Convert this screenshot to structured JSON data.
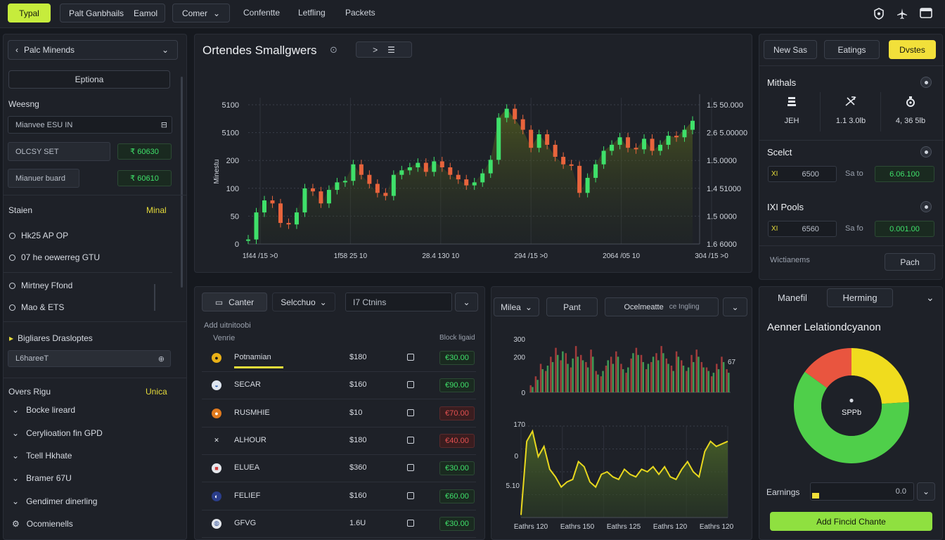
{
  "topbar": {
    "brand_button": "Typal",
    "tabs_group": [
      "Palt Ganbhails",
      "Eamol"
    ],
    "center_dropdown": "Comer",
    "nav_links": [
      "Confentte",
      "Letfling",
      "Packets"
    ],
    "icons": [
      "shield-icon",
      "plane-icon",
      "window-icon"
    ]
  },
  "sidebar": {
    "select_label": "Palc Minends",
    "options_button": "Eptiona",
    "weeshg_label": "Weesng",
    "input_value": "Mianvee ESU IN",
    "row1_label": "OLCSY SET",
    "row1_value": "₹ 60630",
    "row2_label": "Mianuer buard",
    "row2_value": "₹ 60610",
    "status_title": "Staien",
    "status_value": "Minal",
    "radios": [
      "Hk25 AP OP",
      "07 he oewerreg GTU",
      "Mirtney Ffond",
      "Mao & ETS"
    ],
    "bigl_title": "Bigliares Drasloptes",
    "bigl_input": "L6hareeT",
    "overs_title": "Overs Rigu",
    "overs_value": "Unica",
    "tree_items": [
      "Bocke lireard",
      "Cerylioation fin GPD",
      "Tcell Hkhate",
      "Bramer 67U",
      "Gendimer dinerling",
      "Ocomienells"
    ]
  },
  "main_chart": {
    "title": "Ortendes Smallgwers",
    "page_control": ">",
    "y_left": [
      "5100",
      "5100",
      "200",
      "100",
      "50",
      "0"
    ],
    "y_left_axis_label": "Minestu",
    "y_right": [
      "1.5 50.000",
      "2.6 5.00000",
      "1.5.0000",
      "1.4 51000",
      "1.5 0000",
      "1.6 6000"
    ],
    "x_ticks": [
      "1f44 /15 >0",
      "1f58 25 10",
      "28.4 130 10",
      "294 /15 >0",
      "2064 /05 10",
      "304 /15 >0"
    ]
  },
  "right_panel": {
    "buttons": [
      "New Sas",
      "Eatings",
      "Dvstes"
    ],
    "mithals_title": "Mithals",
    "mithals_cells": [
      {
        "icon": "stack-icon",
        "value": "JEH"
      },
      {
        "icon": "satellite-icon",
        "value": "1.1 3.0lb"
      },
      {
        "icon": "gear-bag-icon",
        "value": "4, 36 5lb"
      }
    ],
    "select_title": "Scelct",
    "select_row": {
      "left": "XI",
      "input": "6500",
      "mid": "Sa to",
      "value": "6.06.100"
    },
    "pools_title": "IXI Pools",
    "pools_row": {
      "left": "XI",
      "input": "6560",
      "mid": "Sa fo",
      "value": "0.001.00"
    },
    "footer_label": "Wictianems",
    "footer_button": "Pach"
  },
  "orders": {
    "center_btn": "Canter",
    "selection_dd": "Selcchuo",
    "input_value": "I7 Ctnins",
    "add_label": "Add uitnitoobi",
    "col_left": "Venrie",
    "col_right": "Block ligaid",
    "rows": [
      {
        "icon": "coin-gold-icon",
        "name": "Potnamian",
        "price": "$180",
        "change": "€30.00",
        "up": true
      },
      {
        "icon": "coin-blue-icon",
        "name": "SECAR",
        "price": "$160",
        "change": "€90.00",
        "up": true
      },
      {
        "icon": "coin-orange-icon",
        "name": "RUSMHIE",
        "price": "$10",
        "change": "€70.00",
        "up": false
      },
      {
        "icon": "x-coin-icon",
        "name": "ALHOUR",
        "price": "$180",
        "change": "€40.00",
        "up": false
      },
      {
        "icon": "coin-red-icon",
        "name": "ELUEA",
        "price": "$360",
        "change": "€30.00",
        "up": true
      },
      {
        "icon": "coin-navy-icon",
        "name": "FELIEF",
        "price": "$160",
        "change": "€60.00",
        "up": true
      },
      {
        "icon": "coin-ring-icon",
        "name": "GFVG",
        "price": "1.6U",
        "change": "€30.00",
        "up": true
      }
    ]
  },
  "mini_charts": {
    "dd1": "Milea",
    "btn": "Pant",
    "dd2": "Ocelmeatte",
    "dd2_sub": "ce Ingling",
    "bar_y": [
      "300",
      "200",
      "0"
    ],
    "bar_right_label": "67",
    "line_y": [
      "170",
      "0",
      "5.10"
    ],
    "x_labels": [
      "Eathrs 120",
      "Eathrs 150",
      "Eathrs 125",
      "Eathrs 120",
      "Eathrs 120"
    ]
  },
  "donut_panel": {
    "tabs": [
      "Manefil",
      "Herming"
    ],
    "title": "Aenner Lelationdcyanon",
    "center_label": "SPPb",
    "earnings_label": "Earnings",
    "earnings_value": "0.0",
    "cta": "Add Fincid Chante"
  },
  "chart_data": [
    {
      "type": "candlestick",
      "title": "Ortendes Smallgwers",
      "xlabel": "",
      "ylabel": "Minestu",
      "x_tick_labels": [
        "1f44 /15 >0",
        "1f58 25 10",
        "28.4 130 10",
        "294 /15 >0",
        "2064 /05 10",
        "304 /15 >0"
      ],
      "y_tick_labels_left": [
        "5100",
        "5100",
        "200",
        "100",
        "50",
        "0"
      ],
      "y_tick_labels_right": [
        "1.5 50.000",
        "2.6 5.00000",
        "1.5.0000",
        "1.4 51000",
        "1.5 0000",
        "1.6 6000"
      ],
      "y_range": [
        0,
        5100
      ],
      "closes": [
        150,
        1050,
        1450,
        1350,
        700,
        650,
        1050,
        1850,
        1750,
        1350,
        1800,
        2050,
        2100,
        2650,
        2300,
        2000,
        1700,
        1600,
        2300,
        2450,
        2550,
        2700,
        2400,
        2750,
        2550,
        2300,
        2150,
        1950,
        2050,
        2350,
        2800,
        4200,
        4500,
        4150,
        3800,
        3200,
        3650,
        3300,
        2900,
        2650,
        2600,
        1700,
        2200,
        2650,
        3100,
        3300,
        3550,
        3200,
        3150,
        3500,
        3100,
        3300,
        3600,
        3550,
        3800,
        4100
      ]
    },
    {
      "type": "bar",
      "ylim": [
        0,
        300
      ],
      "y_tick_labels": [
        "300",
        "200",
        "0"
      ],
      "series": [
        {
          "values": [
            40,
            90,
            160,
            120,
            200,
            250,
            180,
            220,
            140,
            260,
            210,
            170,
            240,
            120,
            90,
            150,
            200,
            230,
            160,
            110,
            190,
            250,
            210,
            130,
            170,
            220,
            260,
            190,
            150,
            230,
            180,
            120,
            210,
            240,
            170,
            140,
            90,
            160,
            200,
            130
          ]
        },
        {
          "values": [
            30,
            70,
            130,
            150,
            170,
            210,
            230,
            160,
            190,
            200,
            180,
            140,
            200,
            100,
            120,
            180,
            160,
            200,
            130,
            140,
            220,
            210,
            170,
            160,
            200,
            180,
            220,
            160,
            120,
            200,
            150,
            140,
            170,
            200,
            140,
            120,
            110,
            130,
            170,
            110
          ]
        }
      ]
    },
    {
      "type": "area",
      "y_tick_labels": [
        "170",
        "0",
        "5.10"
      ],
      "x_tick_labels": [
        "Eathrs 120",
        "Eathrs 150",
        "Eathrs 125",
        "Eathrs 120",
        "Eathrs 120"
      ],
      "values": [
        5,
        150,
        170,
        120,
        140,
        95,
        80,
        60,
        70,
        75,
        110,
        100,
        70,
        60,
        85,
        90,
        80,
        75,
        95,
        85,
        80,
        95,
        90,
        100,
        85,
        100,
        80,
        75,
        95,
        110,
        90,
        80,
        130,
        150,
        140,
        145,
        150
      ]
    },
    {
      "type": "pie",
      "title": "Aenner Lelationdcyanon",
      "slices": [
        {
          "value": 0.24,
          "color": "#f0dc1e"
        },
        {
          "value": 0.61,
          "color": "#4fcf4a"
        },
        {
          "value": 0.15,
          "color": "#e9553f"
        }
      ]
    }
  ],
  "colors": {
    "accent": "#c6ec3c",
    "up": "#3fe06a",
    "down": "#e8643c",
    "yellow": "#f2e03a"
  }
}
